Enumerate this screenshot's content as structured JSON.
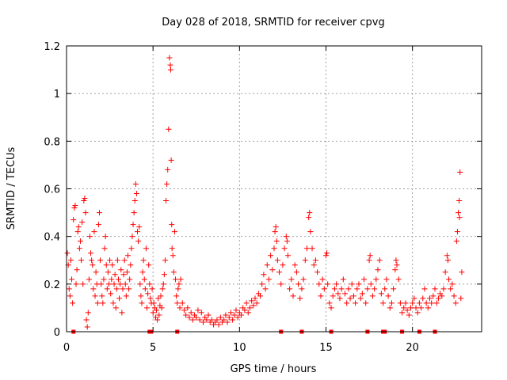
{
  "chart_data": {
    "type": "scatter",
    "title": "Day 028 of 2018, SRMTID for receiver cpvg",
    "xlabel": "GPS time / hours",
    "ylabel": "SRMTID / TECUs",
    "xlim": [
      0,
      24
    ],
    "ylim": [
      0,
      1.2
    ],
    "xticks": [
      0,
      5,
      10,
      15,
      20
    ],
    "xtick_labels": [
      "0",
      "5",
      "10",
      "15",
      "20"
    ],
    "yticks": [
      0,
      0.2,
      0.4,
      0.6,
      0.8,
      1,
      1.2
    ],
    "ytick_labels": [
      "0",
      "0.2",
      "0.4",
      "0.6",
      "0.8",
      "1",
      "1.2"
    ],
    "grid": true,
    "marker": "+",
    "color": "#ff0000",
    "series": [
      {
        "name": "SRMTID",
        "points": [
          [
            0.05,
            0.33
          ],
          [
            0.1,
            0.28
          ],
          [
            0.15,
            0.18
          ],
          [
            0.2,
            0.15
          ],
          [
            0.25,
            0.3
          ],
          [
            0.3,
            0.22
          ],
          [
            0.35,
            0.12
          ],
          [
            0.4,
            0.47
          ],
          [
            0.45,
            0.52
          ],
          [
            0.5,
            0.53
          ],
          [
            0.55,
            0.2
          ],
          [
            0.6,
            0.26
          ],
          [
            0.65,
            0.42
          ],
          [
            0.7,
            0.44
          ],
          [
            0.75,
            0.35
          ],
          [
            0.8,
            0.38
          ],
          [
            0.85,
            0.3
          ],
          [
            0.9,
            0.46
          ],
          [
            0.95,
            0.2
          ],
          [
            1.0,
            0.55
          ],
          [
            1.05,
            0.56
          ],
          [
            1.1,
            0.5
          ],
          [
            1.15,
            0.05
          ],
          [
            1.2,
            0.02
          ],
          [
            1.25,
            0.08
          ],
          [
            1.3,
            0.22
          ],
          [
            1.35,
            0.4
          ],
          [
            1.4,
            0.33
          ],
          [
            1.45,
            0.3
          ],
          [
            1.5,
            0.28
          ],
          [
            1.55,
            0.18
          ],
          [
            1.6,
            0.42
          ],
          [
            1.65,
            0.15
          ],
          [
            1.7,
            0.25
          ],
          [
            1.75,
            0.2
          ],
          [
            1.8,
            0.12
          ],
          [
            1.85,
            0.45
          ],
          [
            1.9,
            0.5
          ],
          [
            1.95,
            0.3
          ],
          [
            2.0,
            0.2
          ],
          [
            2.05,
            0.15
          ],
          [
            2.1,
            0.12
          ],
          [
            2.15,
            0.22
          ],
          [
            2.2,
            0.35
          ],
          [
            2.25,
            0.4
          ],
          [
            2.3,
            0.28
          ],
          [
            2.35,
            0.18
          ],
          [
            2.4,
            0.25
          ],
          [
            2.45,
            0.2
          ],
          [
            2.5,
            0.3
          ],
          [
            2.55,
            0.16
          ],
          [
            2.6,
            0.22
          ],
          [
            2.65,
            0.28
          ],
          [
            2.7,
            0.12
          ],
          [
            2.75,
            0.2
          ],
          [
            2.8,
            0.24
          ],
          [
            2.85,
            0.1
          ],
          [
            2.9,
            0.18
          ],
          [
            2.95,
            0.3
          ],
          [
            3.0,
            0.22
          ],
          [
            3.05,
            0.14
          ],
          [
            3.1,
            0.2
          ],
          [
            3.15,
            0.26
          ],
          [
            3.2,
            0.08
          ],
          [
            3.25,
            0.18
          ],
          [
            3.3,
            0.24
          ],
          [
            3.35,
            0.3
          ],
          [
            3.4,
            0.2
          ],
          [
            3.45,
            0.15
          ],
          [
            3.5,
            0.25
          ],
          [
            3.55,
            0.32
          ],
          [
            3.6,
            0.18
          ],
          [
            3.65,
            0.22
          ],
          [
            3.7,
            0.28
          ],
          [
            3.75,
            0.35
          ],
          [
            3.8,
            0.4
          ],
          [
            3.85,
            0.45
          ],
          [
            3.9,
            0.5
          ],
          [
            3.95,
            0.55
          ],
          [
            4.0,
            0.62
          ],
          [
            4.05,
            0.58
          ],
          [
            4.1,
            0.42
          ],
          [
            4.15,
            0.38
          ],
          [
            4.2,
            0.44
          ],
          [
            4.25,
            0.2
          ],
          [
            4.3,
            0.15
          ],
          [
            4.35,
            0.12
          ],
          [
            4.4,
            0.25
          ],
          [
            4.45,
            0.3
          ],
          [
            4.5,
            0.22
          ],
          [
            4.55,
            0.18
          ],
          [
            4.6,
            0.35
          ],
          [
            4.65,
            0.1
          ],
          [
            4.7,
            0.16
          ],
          [
            4.75,
            0.28
          ],
          [
            4.8,
            0.2
          ],
          [
            4.85,
            0.14
          ],
          [
            4.9,
            0.12
          ],
          [
            4.95,
            0.18
          ],
          [
            5.0,
            0.08
          ],
          [
            5.05,
            0.12
          ],
          [
            5.1,
            0.1
          ],
          [
            5.15,
            0.06
          ],
          [
            5.2,
            0.09
          ],
          [
            5.25,
            0.05
          ],
          [
            5.3,
            0.14
          ],
          [
            5.35,
            0.07
          ],
          [
            5.4,
            0.11
          ],
          [
            5.45,
            0.15
          ],
          [
            5.5,
            0.1
          ],
          [
            5.55,
            0.18
          ],
          [
            5.6,
            0.2
          ],
          [
            5.65,
            0.24
          ],
          [
            5.7,
            0.3
          ],
          [
            5.75,
            0.55
          ],
          [
            5.8,
            0.62
          ],
          [
            5.85,
            0.68
          ],
          [
            5.9,
            0.85
          ],
          [
            5.95,
            1.15
          ],
          [
            6.0,
            1.12
          ],
          [
            6.02,
            1.1
          ],
          [
            6.05,
            0.72
          ],
          [
            6.08,
            0.45
          ],
          [
            6.1,
            0.35
          ],
          [
            6.15,
            0.32
          ],
          [
            6.2,
            0.25
          ],
          [
            6.25,
            0.42
          ],
          [
            6.3,
            0.22
          ],
          [
            6.35,
            0.15
          ],
          [
            6.4,
            0.12
          ],
          [
            6.45,
            0.18
          ],
          [
            6.5,
            0.2
          ],
          [
            6.55,
            0.1
          ],
          [
            6.6,
            0.22
          ],
          [
            6.7,
            0.12
          ],
          [
            6.8,
            0.09
          ],
          [
            6.9,
            0.07
          ],
          [
            7.0,
            0.1
          ],
          [
            7.1,
            0.06
          ],
          [
            7.2,
            0.08
          ],
          [
            7.3,
            0.05
          ],
          [
            7.4,
            0.07
          ],
          [
            7.5,
            0.06
          ],
          [
            7.6,
            0.09
          ],
          [
            7.7,
            0.05
          ],
          [
            7.8,
            0.08
          ],
          [
            7.9,
            0.04
          ],
          [
            8.0,
            0.06
          ],
          [
            8.1,
            0.05
          ],
          [
            8.2,
            0.07
          ],
          [
            8.3,
            0.04
          ],
          [
            8.4,
            0.05
          ],
          [
            8.5,
            0.03
          ],
          [
            8.6,
            0.04
          ],
          [
            8.7,
            0.05
          ],
          [
            8.8,
            0.03
          ],
          [
            8.9,
            0.06
          ],
          [
            9.0,
            0.04
          ],
          [
            9.1,
            0.05
          ],
          [
            9.2,
            0.07
          ],
          [
            9.3,
            0.04
          ],
          [
            9.4,
            0.06
          ],
          [
            9.5,
            0.08
          ],
          [
            9.6,
            0.05
          ],
          [
            9.7,
            0.07
          ],
          [
            9.8,
            0.09
          ],
          [
            9.9,
            0.06
          ],
          [
            10.0,
            0.08
          ],
          [
            10.1,
            0.07
          ],
          [
            10.2,
            0.1
          ],
          [
            10.3,
            0.09
          ],
          [
            10.4,
            0.12
          ],
          [
            10.5,
            0.08
          ],
          [
            10.6,
            0.1
          ],
          [
            10.7,
            0.13
          ],
          [
            10.8,
            0.11
          ],
          [
            10.9,
            0.14
          ],
          [
            11.0,
            0.12
          ],
          [
            11.1,
            0.16
          ],
          [
            11.2,
            0.15
          ],
          [
            11.3,
            0.2
          ],
          [
            11.4,
            0.24
          ],
          [
            11.5,
            0.18
          ],
          [
            11.6,
            0.28
          ],
          [
            11.7,
            0.22
          ],
          [
            11.8,
            0.32
          ],
          [
            11.9,
            0.26
          ],
          [
            12.0,
            0.35
          ],
          [
            12.05,
            0.42
          ],
          [
            12.1,
            0.44
          ],
          [
            12.15,
            0.38
          ],
          [
            12.2,
            0.3
          ],
          [
            12.3,
            0.25
          ],
          [
            12.4,
            0.2
          ],
          [
            12.5,
            0.28
          ],
          [
            12.6,
            0.35
          ],
          [
            12.7,
            0.4
          ],
          [
            12.75,
            0.38
          ],
          [
            12.8,
            0.32
          ],
          [
            12.9,
            0.18
          ],
          [
            13.0,
            0.22
          ],
          [
            13.1,
            0.15
          ],
          [
            13.2,
            0.28
          ],
          [
            13.3,
            0.25
          ],
          [
            13.4,
            0.2
          ],
          [
            13.5,
            0.14
          ],
          [
            13.6,
            0.18
          ],
          [
            13.7,
            0.22
          ],
          [
            13.8,
            0.3
          ],
          [
            13.9,
            0.35
          ],
          [
            14.0,
            0.48
          ],
          [
            14.05,
            0.5
          ],
          [
            14.1,
            0.42
          ],
          [
            14.2,
            0.35
          ],
          [
            14.3,
            0.28
          ],
          [
            14.4,
            0.3
          ],
          [
            14.5,
            0.25
          ],
          [
            14.6,
            0.2
          ],
          [
            14.7,
            0.15
          ],
          [
            14.8,
            0.22
          ],
          [
            14.9,
            0.18
          ],
          [
            15.0,
            0.32
          ],
          [
            15.05,
            0.33
          ],
          [
            15.1,
            0.2
          ],
          [
            15.2,
            0.12
          ],
          [
            15.3,
            0.1
          ],
          [
            15.4,
            0.15
          ],
          [
            15.5,
            0.18
          ],
          [
            15.6,
            0.2
          ],
          [
            15.7,
            0.16
          ],
          [
            15.8,
            0.14
          ],
          [
            15.9,
            0.18
          ],
          [
            16.0,
            0.22
          ],
          [
            16.1,
            0.16
          ],
          [
            16.2,
            0.12
          ],
          [
            16.3,
            0.18
          ],
          [
            16.4,
            0.14
          ],
          [
            16.5,
            0.2
          ],
          [
            16.6,
            0.15
          ],
          [
            16.7,
            0.12
          ],
          [
            16.8,
            0.18
          ],
          [
            16.9,
            0.2
          ],
          [
            17.0,
            0.14
          ],
          [
            17.1,
            0.16
          ],
          [
            17.2,
            0.22
          ],
          [
            17.3,
            0.12
          ],
          [
            17.4,
            0.18
          ],
          [
            17.5,
            0.3
          ],
          [
            17.55,
            0.32
          ],
          [
            17.6,
            0.2
          ],
          [
            17.7,
            0.15
          ],
          [
            17.8,
            0.18
          ],
          [
            17.9,
            0.22
          ],
          [
            18.0,
            0.26
          ],
          [
            18.1,
            0.3
          ],
          [
            18.2,
            0.16
          ],
          [
            18.3,
            0.12
          ],
          [
            18.4,
            0.18
          ],
          [
            18.5,
            0.22
          ],
          [
            18.6,
            0.15
          ],
          [
            18.7,
            0.1
          ],
          [
            18.8,
            0.12
          ],
          [
            18.9,
            0.18
          ],
          [
            19.0,
            0.26
          ],
          [
            19.05,
            0.3
          ],
          [
            19.1,
            0.28
          ],
          [
            19.2,
            0.22
          ],
          [
            19.3,
            0.12
          ],
          [
            19.4,
            0.08
          ],
          [
            19.5,
            0.1
          ],
          [
            19.6,
            0.12
          ],
          [
            19.7,
            0.09
          ],
          [
            19.8,
            0.07
          ],
          [
            19.9,
            0.1
          ],
          [
            20.0,
            0.12
          ],
          [
            20.1,
            0.14
          ],
          [
            20.2,
            0.1
          ],
          [
            20.3,
            0.08
          ],
          [
            20.4,
            0.12
          ],
          [
            20.5,
            0.1
          ],
          [
            20.6,
            0.14
          ],
          [
            20.7,
            0.18
          ],
          [
            20.8,
            0.12
          ],
          [
            20.9,
            0.1
          ],
          [
            21.0,
            0.14
          ],
          [
            21.1,
            0.12
          ],
          [
            21.2,
            0.15
          ],
          [
            21.3,
            0.18
          ],
          [
            21.4,
            0.12
          ],
          [
            21.5,
            0.14
          ],
          [
            21.6,
            0.16
          ],
          [
            21.7,
            0.15
          ],
          [
            21.8,
            0.18
          ],
          [
            21.9,
            0.25
          ],
          [
            22.0,
            0.32
          ],
          [
            22.05,
            0.3
          ],
          [
            22.1,
            0.22
          ],
          [
            22.2,
            0.18
          ],
          [
            22.3,
            0.2
          ],
          [
            22.4,
            0.15
          ],
          [
            22.5,
            0.12
          ],
          [
            22.55,
            0.38
          ],
          [
            22.6,
            0.42
          ],
          [
            22.65,
            0.5
          ],
          [
            22.7,
            0.55
          ],
          [
            22.72,
            0.48
          ],
          [
            22.75,
            0.67
          ],
          [
            22.8,
            0.14
          ],
          [
            22.85,
            0.25
          ]
        ]
      },
      {
        "name": "gap markers",
        "points": [
          [
            0.4,
            0
          ],
          [
            4.8,
            0
          ],
          [
            4.9,
            0
          ],
          [
            6.4,
            0
          ],
          [
            12.4,
            0
          ],
          [
            13.6,
            0
          ],
          [
            15.3,
            0
          ],
          [
            17.4,
            0
          ],
          [
            18.3,
            0
          ],
          [
            18.4,
            0
          ],
          [
            19.4,
            0
          ],
          [
            20.4,
            0
          ],
          [
            21.3,
            0
          ]
        ]
      }
    ]
  }
}
